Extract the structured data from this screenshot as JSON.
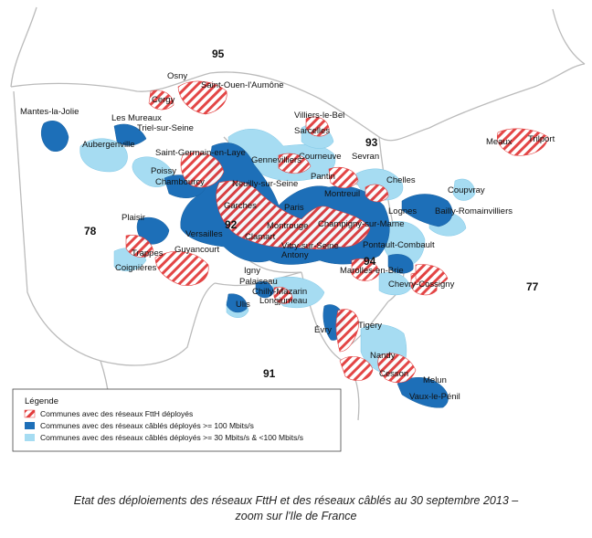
{
  "colors": {
    "ftth_hatch": "#e23c3c",
    "cable_high": "#1d6fb8",
    "cable_low": "#a6dcf2",
    "border": "#bbbbbb"
  },
  "departments": {
    "d95": "95",
    "d93": "93",
    "d78": "78",
    "d92": "92",
    "d94": "94",
    "d77": "77",
    "d91": "91"
  },
  "towns": {
    "osny": "Osny",
    "saint_ouen": "Saint-Ouen-l'Aumône",
    "cergy": "Cergy",
    "mantes": "Mantes-la-Jolie",
    "les_mureaux": "Les Mureaux",
    "triel": "Triel-sur-Seine",
    "aubergenville": "Aubergenville",
    "villiers_le_bel": "Villiers-le-Bel",
    "sarcelles": "Sarcelles",
    "saint_germain": "Saint-Germain-en-Laye",
    "gennevilliers": "Gennevilliers",
    "courneuve": "Courneuve",
    "sevran": "Sevran",
    "meaux": "Meaux",
    "trilport": "Trilport",
    "poissy": "Poissy",
    "chambourcy": "Chambourcy",
    "neuilly": "Neuilly-sur-Seine",
    "pantin": "Pantin",
    "chelles": "Chelles",
    "coupvray": "Coupvray",
    "montreuil": "Montreuil",
    "garches": "Garches",
    "paris": "Paris",
    "lognes": "Lognes",
    "bailly": "Bailly-Romainvilliers",
    "plaisir": "Plaisir",
    "montrouge": "Montrouge",
    "champigny": "Champigny-sur-Marne",
    "versailles": "Versailles",
    "clamart": "Clamart",
    "vitry": "Vitry-sur-Seine",
    "pontault": "Pontault-Combault",
    "trappes": "Trappes",
    "guyancourt": "Guyancourt",
    "antony": "Antony",
    "coignieres": "Coignières",
    "igny": "Igny",
    "marolles": "Marolles-en-Brie",
    "palaiseau": "Palaiseau",
    "chevry": "Chevry-Cossigny",
    "chilly": "Chilly-Mazarin",
    "longjumeau": "Longjumeau",
    "ulis": "Ulis",
    "evry": "Évry",
    "tigery": "Tigery",
    "nandy": "Nandy",
    "cesson": "Cesson",
    "melun": "Melun",
    "vaux": "Vaux-le-Pénil"
  },
  "legend": {
    "title": "Légende",
    "items": [
      "Communes avec des réseaux FttH déployés",
      "Communes avec des réseaux câblés déployés >= 100 Mbits/s",
      "Communes avec des réseaux câblés déployés >= 30 Mbits/s & <100 Mbits/s"
    ]
  },
  "caption": {
    "line1": "Etat des déploiements des réseaux FttH et des réseaux câblés au 30 septembre 2013 –",
    "line2": "zoom sur l'Ile de France"
  }
}
